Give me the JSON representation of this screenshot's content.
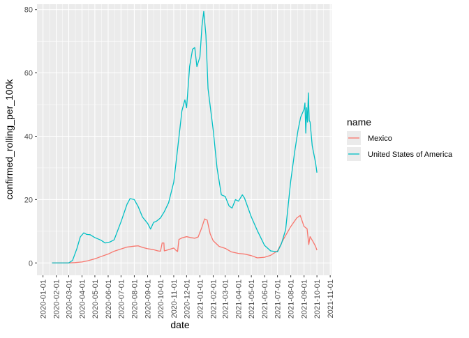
{
  "chart_data": {
    "type": "line",
    "title": "",
    "xlabel": "date",
    "ylabel": "confirmed_rolling_per_100k",
    "legend_title": "name",
    "legend_position": "right",
    "grid": true,
    "xlim": [
      "2019-12-18",
      "2021-11-04"
    ],
    "ylim": [
      -3.9,
      81.7
    ],
    "x_ticks": [
      "2020-01-01",
      "2020-02-01",
      "2020-03-01",
      "2020-04-01",
      "2020-05-01",
      "2020-06-01",
      "2020-07-01",
      "2020-08-01",
      "2020-09-01",
      "2020-10-01",
      "2020-11-01",
      "2020-12-01",
      "2021-01-01",
      "2021-02-01",
      "2021-03-01",
      "2021-04-01",
      "2021-05-01",
      "2021-06-01",
      "2021-07-01",
      "2021-08-01",
      "2021-09-01",
      "2021-10-01",
      "2021-11-01"
    ],
    "y_ticks": [
      0,
      20,
      40,
      60,
      80
    ],
    "series": [
      {
        "name": "Mexico",
        "color": "#f8766d",
        "points": [
          [
            "2020-01-22",
            0
          ],
          [
            "2020-03-01",
            0
          ],
          [
            "2020-03-15",
            0.1
          ],
          [
            "2020-04-01",
            0.3
          ],
          [
            "2020-04-15",
            0.7
          ],
          [
            "2020-05-01",
            1.3
          ],
          [
            "2020-05-15",
            2.0
          ],
          [
            "2020-06-01",
            2.8
          ],
          [
            "2020-06-15",
            3.7
          ],
          [
            "2020-07-01",
            4.4
          ],
          [
            "2020-07-15",
            5.0
          ],
          [
            "2020-08-01",
            5.3
          ],
          [
            "2020-08-10",
            5.4
          ],
          [
            "2020-08-20",
            4.9
          ],
          [
            "2020-09-01",
            4.5
          ],
          [
            "2020-09-15",
            4.2
          ],
          [
            "2020-09-25",
            3.8
          ],
          [
            "2020-10-01",
            3.7
          ],
          [
            "2020-10-05",
            6.3
          ],
          [
            "2020-10-09",
            6.3
          ],
          [
            "2020-10-10",
            3.8
          ],
          [
            "2020-10-20",
            4.2
          ],
          [
            "2020-11-01",
            4.7
          ],
          [
            "2020-11-06",
            4.0
          ],
          [
            "2020-11-10",
            3.6
          ],
          [
            "2020-11-13",
            7.4
          ],
          [
            "2020-11-20",
            7.9
          ],
          [
            "2020-12-01",
            8.3
          ],
          [
            "2020-12-10",
            8.0
          ],
          [
            "2020-12-20",
            7.8
          ],
          [
            "2020-12-28",
            8.2
          ],
          [
            "2021-01-05",
            11.0
          ],
          [
            "2021-01-12",
            13.9
          ],
          [
            "2021-01-18",
            13.5
          ],
          [
            "2021-01-25",
            9.2
          ],
          [
            "2021-02-01",
            7.0
          ],
          [
            "2021-02-15",
            5.2
          ],
          [
            "2021-03-01",
            4.6
          ],
          [
            "2021-03-15",
            3.5
          ],
          [
            "2021-04-01",
            3.0
          ],
          [
            "2021-04-15",
            2.8
          ],
          [
            "2021-05-01",
            2.3
          ],
          [
            "2021-05-15",
            1.6
          ],
          [
            "2021-06-01",
            1.8
          ],
          [
            "2021-06-15",
            2.4
          ],
          [
            "2021-07-01",
            3.8
          ],
          [
            "2021-07-15",
            7.5
          ],
          [
            "2021-08-01",
            11.5
          ],
          [
            "2021-08-15",
            14.2
          ],
          [
            "2021-08-23",
            15.0
          ],
          [
            "2021-09-01",
            11.5
          ],
          [
            "2021-09-08",
            10.8
          ],
          [
            "2021-09-12",
            5.8
          ],
          [
            "2021-09-15",
            8.3
          ],
          [
            "2021-09-22",
            6.7
          ],
          [
            "2021-09-28",
            5.2
          ],
          [
            "2021-10-01",
            4.0
          ]
        ]
      },
      {
        "name": "United States of America",
        "color": "#00bfc4",
        "points": [
          [
            "2020-01-22",
            0
          ],
          [
            "2020-03-01",
            0
          ],
          [
            "2020-03-10",
            0.8
          ],
          [
            "2020-03-20",
            4.5
          ],
          [
            "2020-03-28",
            8.2
          ],
          [
            "2020-04-05",
            9.5
          ],
          [
            "2020-04-12",
            9.0
          ],
          [
            "2020-04-20",
            8.9
          ],
          [
            "2020-05-01",
            8.0
          ],
          [
            "2020-05-15",
            7.2
          ],
          [
            "2020-05-25",
            6.3
          ],
          [
            "2020-06-05",
            6.6
          ],
          [
            "2020-06-15",
            7.3
          ],
          [
            "2020-07-01",
            13.0
          ],
          [
            "2020-07-15",
            18.5
          ],
          [
            "2020-07-22",
            20.3
          ],
          [
            "2020-08-01",
            20.0
          ],
          [
            "2020-08-10",
            17.8
          ],
          [
            "2020-08-20",
            14.5
          ],
          [
            "2020-09-01",
            12.5
          ],
          [
            "2020-09-08",
            10.7
          ],
          [
            "2020-09-15",
            12.8
          ],
          [
            "2020-09-22",
            13.2
          ],
          [
            "2020-10-01",
            14.2
          ],
          [
            "2020-10-10",
            16.2
          ],
          [
            "2020-10-20",
            19.0
          ],
          [
            "2020-11-01",
            25.5
          ],
          [
            "2020-11-10",
            36.0
          ],
          [
            "2020-11-20",
            48.0
          ],
          [
            "2020-11-27",
            51.5
          ],
          [
            "2020-12-01",
            49.0
          ],
          [
            "2020-12-08",
            62.0
          ],
          [
            "2020-12-15",
            67.5
          ],
          [
            "2020-12-20",
            68.0
          ],
          [
            "2020-12-25",
            62.0
          ],
          [
            "2021-01-01",
            65.0
          ],
          [
            "2021-01-06",
            75.0
          ],
          [
            "2021-01-10",
            79.4
          ],
          [
            "2021-01-15",
            72.0
          ],
          [
            "2021-01-20",
            55.0
          ],
          [
            "2021-02-01",
            42.0
          ],
          [
            "2021-02-10",
            30.0
          ],
          [
            "2021-02-20",
            21.5
          ],
          [
            "2021-03-01",
            21.0
          ],
          [
            "2021-03-10",
            18.0
          ],
          [
            "2021-03-17",
            17.3
          ],
          [
            "2021-03-25",
            20.0
          ],
          [
            "2021-04-01",
            19.5
          ],
          [
            "2021-04-10",
            21.5
          ],
          [
            "2021-04-15",
            20.5
          ],
          [
            "2021-05-01",
            14.5
          ],
          [
            "2021-05-15",
            10.2
          ],
          [
            "2021-06-01",
            5.5
          ],
          [
            "2021-06-15",
            3.8
          ],
          [
            "2021-07-01",
            3.5
          ],
          [
            "2021-07-10",
            6.0
          ],
          [
            "2021-07-20",
            10.5
          ],
          [
            "2021-08-01",
            26.0
          ],
          [
            "2021-08-10",
            35.0
          ],
          [
            "2021-08-18",
            42.0
          ],
          [
            "2021-08-24",
            46.0
          ],
          [
            "2021-09-01",
            48.5
          ],
          [
            "2021-09-03",
            50.5
          ],
          [
            "2021-09-05",
            41.0
          ],
          [
            "2021-09-07",
            49.0
          ],
          [
            "2021-09-09",
            44.5
          ],
          [
            "2021-09-11",
            53.7
          ],
          [
            "2021-09-13",
            45.0
          ],
          [
            "2021-09-15",
            44.5
          ],
          [
            "2021-09-20",
            37.0
          ],
          [
            "2021-09-28",
            31.5
          ],
          [
            "2021-10-01",
            28.5
          ]
        ]
      }
    ]
  }
}
